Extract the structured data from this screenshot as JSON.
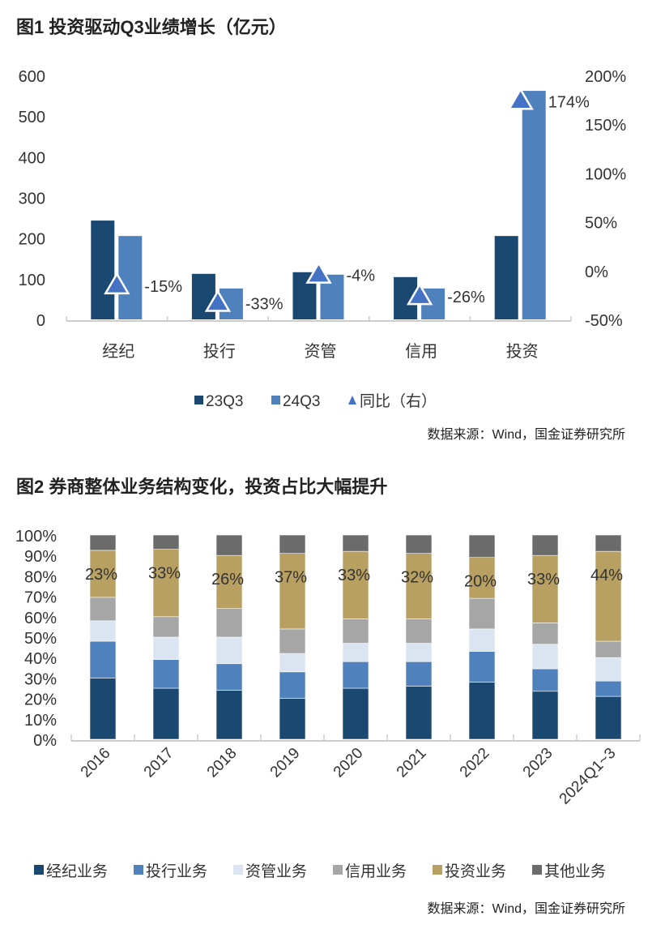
{
  "chart_data": [
    {
      "type": "bar",
      "title": "图1  投资驱动Q3业绩增长（亿元）",
      "categories": [
        "经纪",
        "投行",
        "资管",
        "信用",
        "投资"
      ],
      "series": [
        {
          "name": "23Q3",
          "values": [
            243,
            112,
            116,
            104,
            205
          ],
          "color": "#1a4870",
          "axis": "left"
        },
        {
          "name": "24Q3",
          "values": [
            205,
            76,
            110,
            76,
            562
          ],
          "color": "#4f81bd",
          "axis": "left"
        },
        {
          "name": "同比（右）",
          "values": [
            -15,
            -33,
            -4,
            -26,
            174
          ],
          "labels": [
            "-15%",
            "-33%",
            "-4%",
            "-26%",
            "174%"
          ],
          "color": "#4472c4",
          "axis": "right",
          "marker": "triangle"
        }
      ],
      "ylim": [
        0,
        600
      ],
      "yticks": [
        "0",
        "100",
        "200",
        "300",
        "400",
        "500",
        "600"
      ],
      "y2lim": [
        -50,
        200
      ],
      "y2ticks": [
        "-50%",
        "0%",
        "50%",
        "100%",
        "150%",
        "200%"
      ],
      "legend": "bottom",
      "grid": false,
      "source": "数据来源：Wind，国金证券研究所"
    },
    {
      "type": "bar",
      "stacked": true,
      "title": "图2  券商整体业务结构变化，投资占比大幅提升",
      "categories": [
        "2016",
        "2017",
        "2018",
        "2019",
        "2020",
        "2021",
        "2022",
        "2023",
        "2024Q1~3"
      ],
      "series": [
        {
          "name": "经纪业务",
          "values": [
            30,
            25,
            24,
            20,
            25,
            26,
            28,
            23.5,
            21
          ],
          "color": "#1a4870"
        },
        {
          "name": "投行业务",
          "values": [
            18,
            14,
            13,
            13,
            13,
            12,
            15,
            11,
            7.5
          ],
          "color": "#4f81bd"
        },
        {
          "name": "资管业务",
          "values": [
            10,
            11,
            13,
            9,
            9,
            9,
            11,
            12,
            11.5
          ],
          "color": "#dbe5f1"
        },
        {
          "name": "信用业务",
          "values": [
            11.5,
            10,
            14,
            12,
            12,
            12,
            15,
            10.5,
            8
          ],
          "color": "#a6a6a6"
        },
        {
          "name": "投资业务",
          "values": [
            23,
            33,
            26,
            37,
            33,
            32,
            20,
            33,
            44
          ],
          "labels": [
            "23%",
            "33%",
            "26%",
            "37%",
            "33%",
            "32%",
            "20%",
            "33%",
            "44%"
          ],
          "color": "#b8a063"
        },
        {
          "name": "其他业务",
          "values": [
            7.5,
            7,
            10,
            9,
            8,
            9,
            11,
            10,
            8
          ],
          "color": "#6b6b6b"
        }
      ],
      "ylim": [
        0,
        100
      ],
      "yticks": [
        "0%",
        "10%",
        "20%",
        "30%",
        "40%",
        "50%",
        "60%",
        "70%",
        "80%",
        "90%",
        "100%"
      ],
      "legend": "bottom",
      "grid": false,
      "source": "数据来源：Wind，国金证券研究所"
    }
  ]
}
